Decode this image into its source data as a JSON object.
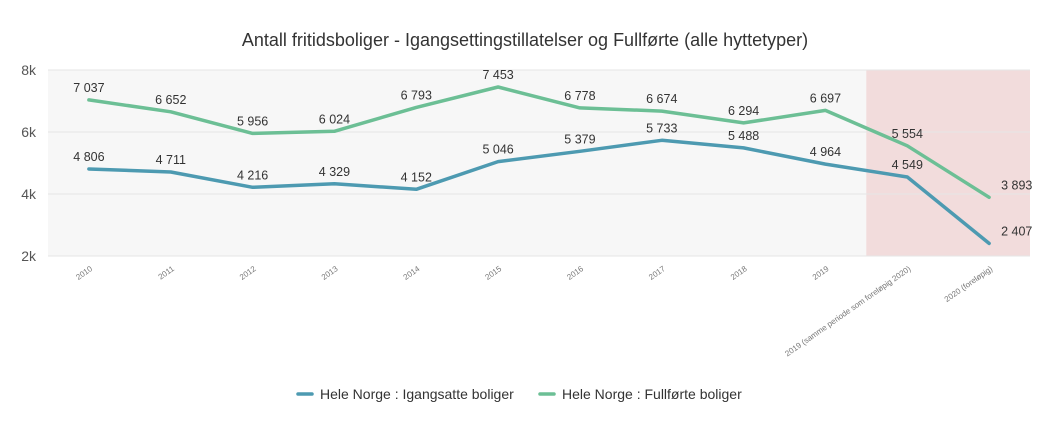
{
  "chart_data": {
    "type": "line",
    "title": "Antall fritidsboliger - Igangsettingstillatelser og Fullførte (alle hyttetyper)",
    "xlabel": "",
    "ylabel": "",
    "categories": [
      "2010",
      "2011",
      "2012",
      "2013",
      "2014",
      "2015",
      "2016",
      "2017",
      "2018",
      "2019",
      "2019 (samme periode som foreløpig 2020)",
      "2020 (foreløpig)"
    ],
    "ylim": [
      2000,
      8000
    ],
    "yticks": [
      {
        "value": 2000,
        "label": "2k"
      },
      {
        "value": 4000,
        "label": "4k"
      },
      {
        "value": 6000,
        "label": "6k"
      },
      {
        "value": 8000,
        "label": "8k"
      }
    ],
    "series": [
      {
        "name": "Hele Norge : Igangsatte boliger",
        "color": "#4d9ab1",
        "values": [
          4806,
          4711,
          4216,
          4329,
          4152,
          5046,
          5379,
          5733,
          5488,
          4964,
          4549,
          2407
        ],
        "labels": [
          "4 806",
          "4 711",
          "4 216",
          "4 329",
          "4 152",
          "5 046",
          "5 379",
          "5 733",
          "5 488",
          "4 964",
          "4 549",
          "2 407"
        ]
      },
      {
        "name": "Hele Norge : Fullførte boliger",
        "color": "#6cbf95",
        "values": [
          7037,
          6652,
          5956,
          6024,
          6793,
          7453,
          6778,
          6674,
          6294,
          6697,
          5554,
          3893
        ],
        "labels": [
          "7 037",
          "6 652",
          "5 956",
          "6 024",
          "6 793",
          "7 453",
          "6 778",
          "6 674",
          "6 294",
          "6 697",
          "5 554",
          "3 893"
        ]
      }
    ],
    "plot_bands": [
      {
        "from_category": 10,
        "to_category": 11,
        "color": "#f2dcdc"
      }
    ],
    "plot_background": "#f7f7f7",
    "grid": true,
    "legend": "bottom-center"
  }
}
